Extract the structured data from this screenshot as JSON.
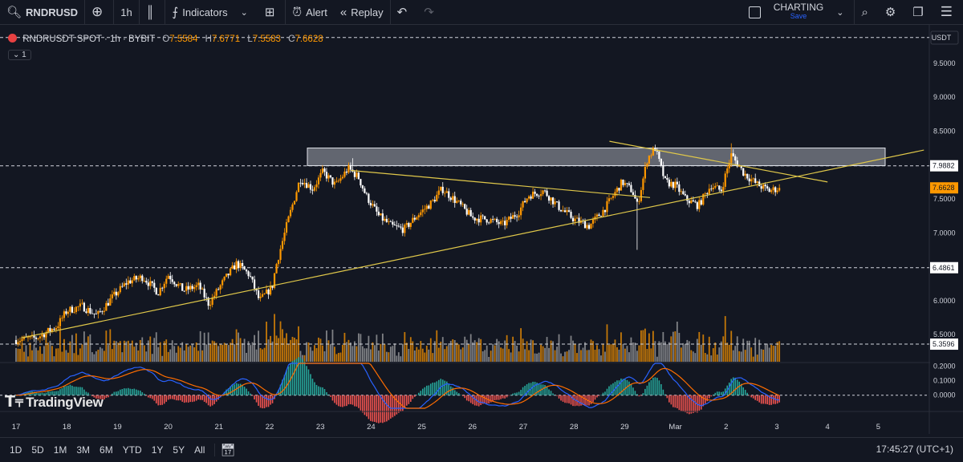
{
  "toolbar": {
    "symbol": "RNDRUSD",
    "interval": "1h",
    "indicators_label": "Indicators",
    "alert_label": "Alert",
    "replay_label": "Replay",
    "layout_name": "CHARTING",
    "layout_status": "Save"
  },
  "legend": {
    "title": "RNDRUSDT SPOT · 1h · BYBIT",
    "o_label": "O",
    "o_value": "7.5584",
    "h_label": "H",
    "h_value": "7.6771",
    "l_label": "L",
    "l_value": "7.5583",
    "c_label": "C",
    "c_value": "7.6628",
    "collapse_label": "1"
  },
  "watermark": "TradingView",
  "bottom": {
    "ranges": [
      "1D",
      "5D",
      "1M",
      "3M",
      "6M",
      "YTD",
      "1Y",
      "5Y",
      "All"
    ],
    "clock": "17:45:27 (UTC+1)"
  },
  "colors": {
    "background": "#131722",
    "bull": "#ff9800",
    "bear": "#ffffff",
    "trendline": "#e0c84a",
    "zone": "#b2b5be"
  },
  "chart_data": {
    "type": "candlestick",
    "currency": "USDT",
    "x": [
      "17",
      "18",
      "19",
      "20",
      "21",
      "22",
      "23",
      "24",
      "25",
      "26",
      "27",
      "28",
      "29",
      "Mar",
      "2",
      "3",
      "4",
      "5"
    ],
    "y_ticks": [
      "9.5000",
      "9.0000",
      "8.5000",
      "7.5000",
      "7.0000",
      "6.0000",
      "5.5000"
    ],
    "ylim": [
      5.1,
      9.9
    ],
    "last_price": "7.6628",
    "levels": [
      {
        "value": 7.9882,
        "label": "7.9882"
      },
      {
        "value": 6.4861,
        "label": "6.4861"
      },
      {
        "value": 5.3596,
        "label": "5.3596"
      },
      {
        "value": 9.88,
        "label": ""
      }
    ],
    "resistance_zone": {
      "from": 7.99,
      "to": 8.25
    },
    "price_path": [
      [
        0,
        5.42
      ],
      [
        0.4,
        5.45
      ],
      [
        0.8,
        5.62
      ],
      [
        1.0,
        5.85
      ],
      [
        1.3,
        5.92
      ],
      [
        1.6,
        5.78
      ],
      [
        1.9,
        6.05
      ],
      [
        2.2,
        6.28
      ],
      [
        2.5,
        6.35
      ],
      [
        2.8,
        6.12
      ],
      [
        3.0,
        6.38
      ],
      [
        3.3,
        6.15
      ],
      [
        3.6,
        6.22
      ],
      [
        3.8,
        5.95
      ],
      [
        4.1,
        6.3
      ],
      [
        4.35,
        6.55
      ],
      [
        4.6,
        6.38
      ],
      [
        4.8,
        6.0
      ],
      [
        5.05,
        6.2
      ],
      [
        5.12,
        6.5
      ],
      [
        5.35,
        7.15
      ],
      [
        5.6,
        7.8
      ],
      [
        5.85,
        7.65
      ],
      [
        6.05,
        7.9
      ],
      [
        6.3,
        7.7
      ],
      [
        6.55,
        7.95
      ],
      [
        6.75,
        7.82
      ],
      [
        6.9,
        7.55
      ],
      [
        7.15,
        7.25
      ],
      [
        7.4,
        7.1
      ],
      [
        7.65,
        7.05
      ],
      [
        7.9,
        7.25
      ],
      [
        8.2,
        7.45
      ],
      [
        8.4,
        7.65
      ],
      [
        8.7,
        7.45
      ],
      [
        9.0,
        7.22
      ],
      [
        9.3,
        7.2
      ],
      [
        9.6,
        7.12
      ],
      [
        9.9,
        7.3
      ],
      [
        10.1,
        7.55
      ],
      [
        10.4,
        7.62
      ],
      [
        10.7,
        7.38
      ],
      [
        11.0,
        7.2
      ],
      [
        11.3,
        7.1
      ],
      [
        11.6,
        7.35
      ],
      [
        11.95,
        7.75
      ],
      [
        12.15,
        7.62
      ],
      [
        12.25,
        7.4
      ],
      [
        12.45,
        8.1
      ],
      [
        12.6,
        8.25
      ],
      [
        12.8,
        7.75
      ],
      [
        13.0,
        7.7
      ],
      [
        13.2,
        7.5
      ],
      [
        13.45,
        7.4
      ],
      [
        13.7,
        7.7
      ],
      [
        13.9,
        7.62
      ],
      [
        14.1,
        8.15
      ],
      [
        14.35,
        7.88
      ],
      [
        14.6,
        7.72
      ],
      [
        14.85,
        7.62
      ],
      [
        15.05,
        7.66
      ]
    ],
    "wick_extremes": [
      [
        12.25,
        6.75
      ],
      [
        12.6,
        8.3
      ],
      [
        14.1,
        8.32
      ],
      [
        6.65,
        8.1
      ]
    ],
    "trendlines": [
      {
        "from": [
          0.1,
          5.45
        ],
        "to": [
          17.9,
          8.22
        ],
        "label": ""
      },
      {
        "from": [
          6.6,
          7.92
        ],
        "to": [
          12.5,
          7.52
        ],
        "label": ""
      },
      {
        "from": [
          11.7,
          8.35
        ],
        "to": [
          16.0,
          7.75
        ],
        "label": ""
      }
    ],
    "macd_ticks": [
      "0.2000",
      "0.1000",
      "0.0000"
    ],
    "macd_ylim": [
      -0.09,
      0.22
    ]
  }
}
